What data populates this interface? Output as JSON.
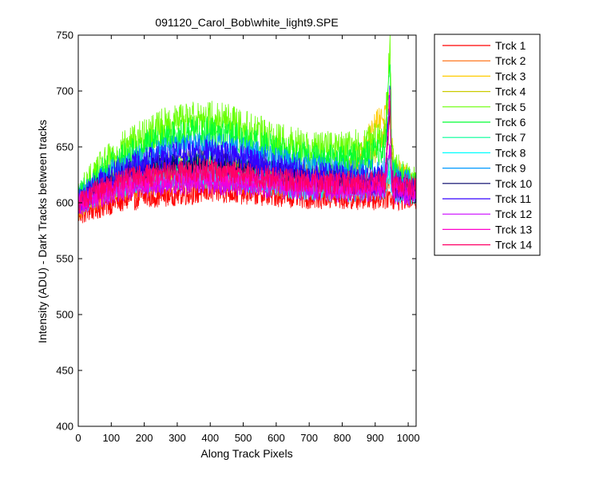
{
  "chart_data": {
    "type": "line",
    "title": "091120_Carol_Bob\\white_light9.SPE",
    "xlabel": "Along Track Pixels",
    "ylabel": "Intensity (ADU) - Dark Tracks between tracks",
    "xlim": [
      0,
      1024
    ],
    "ylim": [
      400,
      750
    ],
    "xticks": [
      0,
      100,
      200,
      300,
      400,
      500,
      600,
      700,
      800,
      900,
      1000
    ],
    "yticks": [
      400,
      450,
      500,
      550,
      600,
      650,
      700,
      750
    ],
    "grid": false,
    "legend_position": "outside-right",
    "x_note": "Each series spans pixels 1-1024 with high-frequency noise; values below are approximate smoothed envelope means.",
    "x": [
      0,
      50,
      100,
      150,
      200,
      250,
      300,
      350,
      400,
      450,
      500,
      550,
      600,
      650,
      700,
      750,
      800,
      850,
      900,
      930,
      945,
      950,
      960,
      1000,
      1024
    ],
    "series": [
      {
        "name": "Trck 1",
        "color": "#ff0000",
        "noise": 6,
        "values": [
          590,
          595,
          600,
          603,
          605,
          607,
          608,
          609,
          610,
          610,
          609,
          608,
          607,
          606,
          605,
          605,
          604,
          604,
          604,
          605,
          606,
          605,
          604,
          604,
          603
        ]
      },
      {
        "name": "Trck 2",
        "color": "#ff6600",
        "noise": 6,
        "values": [
          595,
          602,
          608,
          612,
          615,
          617,
          619,
          620,
          620,
          619,
          618,
          617,
          616,
          615,
          614,
          613,
          613,
          613,
          614,
          616,
          620,
          616,
          614,
          613,
          612
        ]
      },
      {
        "name": "Trck 3",
        "color": "#ffcc00",
        "noise": 7,
        "values": [
          598,
          608,
          615,
          620,
          623,
          626,
          628,
          629,
          629,
          628,
          626,
          624,
          622,
          620,
          619,
          620,
          625,
          640,
          670,
          680,
          690,
          650,
          630,
          620,
          615
        ]
      },
      {
        "name": "Trck 4",
        "color": "#cccc00",
        "noise": 7,
        "values": [
          600,
          610,
          620,
          626,
          630,
          633,
          635,
          636,
          636,
          634,
          632,
          629,
          626,
          624,
          622,
          622,
          625,
          632,
          648,
          660,
          680,
          640,
          625,
          618,
          614
        ]
      },
      {
        "name": "Trck 5",
        "color": "#66ff00",
        "noise": 9,
        "values": [
          605,
          625,
          640,
          652,
          660,
          668,
          673,
          676,
          676,
          673,
          668,
          662,
          656,
          652,
          650,
          648,
          648,
          650,
          655,
          660,
          745,
          650,
          630,
          620,
          615
        ]
      },
      {
        "name": "Trck 6",
        "color": "#00ff33",
        "noise": 8,
        "values": [
          603,
          620,
          633,
          643,
          650,
          656,
          660,
          663,
          663,
          660,
          656,
          651,
          646,
          642,
          640,
          638,
          638,
          640,
          644,
          648,
          720,
          640,
          625,
          618,
          614
        ]
      },
      {
        "name": "Trck 7",
        "color": "#00ff99",
        "noise": 6,
        "values": [
          600,
          610,
          618,
          623,
          627,
          630,
          632,
          633,
          633,
          631,
          629,
          627,
          624,
          622,
          620,
          619,
          618,
          618,
          619,
          621,
          640,
          620,
          616,
          614,
          612
        ]
      },
      {
        "name": "Trck 8",
        "color": "#00ffff",
        "noise": 6,
        "values": [
          598,
          606,
          612,
          616,
          619,
          621,
          622,
          623,
          623,
          622,
          620,
          618,
          616,
          614,
          613,
          612,
          611,
          611,
          612,
          613,
          630,
          612,
          610,
          609,
          608
        ]
      },
      {
        "name": "Trck 9",
        "color": "#0099ff",
        "noise": 7,
        "values": [
          602,
          616,
          627,
          635,
          641,
          646,
          649,
          651,
          651,
          649,
          646,
          642,
          638,
          635,
          632,
          630,
          628,
          627,
          627,
          628,
          700,
          628,
          622,
          617,
          614
        ]
      },
      {
        "name": "Trck 10",
        "color": "#000066",
        "noise": 6,
        "values": [
          600,
          612,
          620,
          626,
          630,
          633,
          635,
          636,
          636,
          634,
          632,
          629,
          626,
          623,
          621,
          619,
          618,
          617,
          617,
          618,
          690,
          618,
          614,
          612,
          610
        ]
      },
      {
        "name": "Trck 11",
        "color": "#3300ff",
        "noise": 7,
        "values": [
          601,
          614,
          624,
          631,
          636,
          640,
          643,
          645,
          645,
          643,
          640,
          636,
          632,
          629,
          626,
          624,
          622,
          621,
          621,
          622,
          700,
          622,
          617,
          614,
          612
        ]
      },
      {
        "name": "Trck 12",
        "color": "#cc00ff",
        "noise": 6,
        "values": [
          598,
          604,
          609,
          612,
          614,
          616,
          617,
          618,
          618,
          617,
          616,
          615,
          614,
          613,
          612,
          611,
          611,
          611,
          611,
          612,
          650,
          612,
          609,
          608,
          607
        ]
      },
      {
        "name": "Trck 13",
        "color": "#ff00cc",
        "noise": 6,
        "values": [
          599,
          606,
          612,
          616,
          619,
          621,
          622,
          623,
          623,
          622,
          621,
          619,
          618,
          617,
          616,
          615,
          615,
          615,
          616,
          617,
          700,
          617,
          614,
          612,
          611
        ]
      },
      {
        "name": "Trck 14",
        "color": "#ff0066",
        "noise": 6,
        "values": [
          600,
          609,
          616,
          621,
          624,
          626,
          628,
          629,
          629,
          628,
          626,
          624,
          622,
          620,
          619,
          618,
          618,
          618,
          619,
          620,
          690,
          620,
          617,
          615,
          613
        ]
      }
    ]
  }
}
